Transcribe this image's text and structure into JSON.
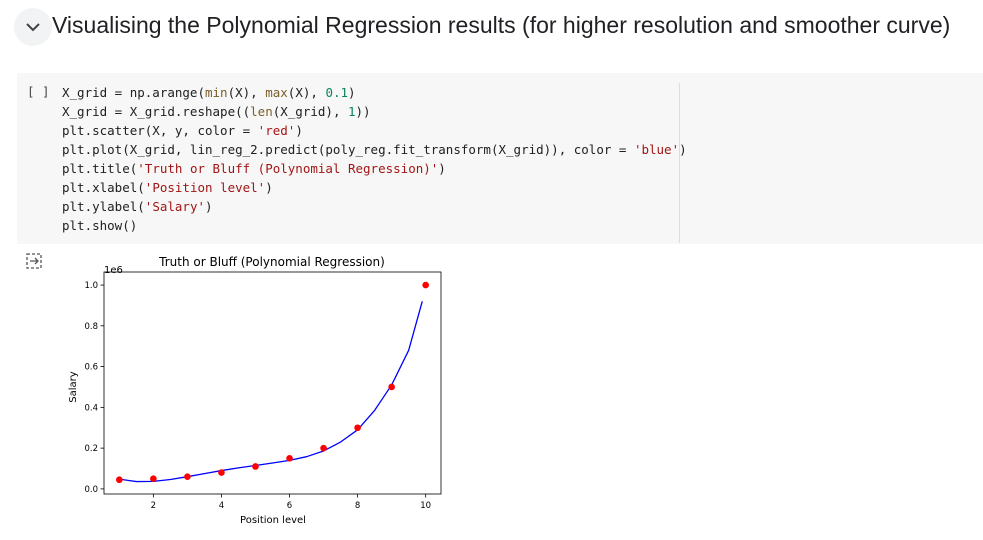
{
  "section": {
    "title": "Visualising the Polynomial Regression results (for higher resolution and smoother curve)"
  },
  "cell": {
    "bracket": "[ ]",
    "code": [
      [
        "X_grid = np.arange(",
        "min",
        "(X), ",
        "max",
        "(X), ",
        "0.1",
        ")"
      ],
      [
        "X_grid = X_grid.reshape((",
        "len",
        "(X_grid), ",
        "1",
        "))"
      ],
      [
        "plt.scatter(X, y, color = ",
        "'red'",
        ")"
      ],
      [
        "plt.plot(X_grid, lin_reg_2.predict(poly_reg.fit_transform(X_grid)), color = ",
        "'blue'",
        ")"
      ],
      [
        "plt.title(",
        "'Truth or Bluff (Polynomial Regression)'",
        ")"
      ],
      [
        "plt.xlabel(",
        "'Position level'",
        ")"
      ],
      [
        "plt.ylabel(",
        "'Salary'",
        ")"
      ],
      [
        "plt.show()"
      ]
    ]
  },
  "chart_data": {
    "type": "scatter",
    "title": "Truth or Bluff (Polynomial Regression)",
    "x_label": "Position level",
    "y_label": "Salary",
    "y_offset_label": "1e6",
    "xlim": [
      0.55,
      10.45
    ],
    "ylim": [
      -0.025,
      1.064
    ],
    "xticks": [
      2,
      4,
      6,
      8,
      10
    ],
    "yticks": [
      {
        "value": 0,
        "label": "0.0"
      },
      0.2,
      0.4,
      0.6,
      0.8,
      {
        "value": 1,
        "label": "1.0"
      }
    ],
    "series": [
      {
        "color": "red",
        "x": [
          1,
          2,
          3,
          4,
          5,
          6,
          7,
          8,
          9,
          10
        ],
        "values": [
          0.045,
          0.05,
          0.06,
          0.08,
          0.11,
          0.15,
          0.2,
          0.3,
          0.5,
          1.0
        ]
      },
      {
        "type": "line",
        "color": "blue",
        "x": [
          1,
          1.5,
          2,
          2.5,
          3,
          3.5,
          4,
          4.5,
          5,
          5.5,
          6,
          6.5,
          7,
          7.5,
          8,
          8.5,
          9,
          9.5,
          9.9
        ],
        "values": [
          0.048,
          0.036,
          0.037,
          0.046,
          0.06,
          0.075,
          0.09,
          0.103,
          0.115,
          0.127,
          0.14,
          0.158,
          0.186,
          0.23,
          0.29,
          0.385,
          0.51,
          0.68,
          0.92
        ]
      }
    ]
  }
}
